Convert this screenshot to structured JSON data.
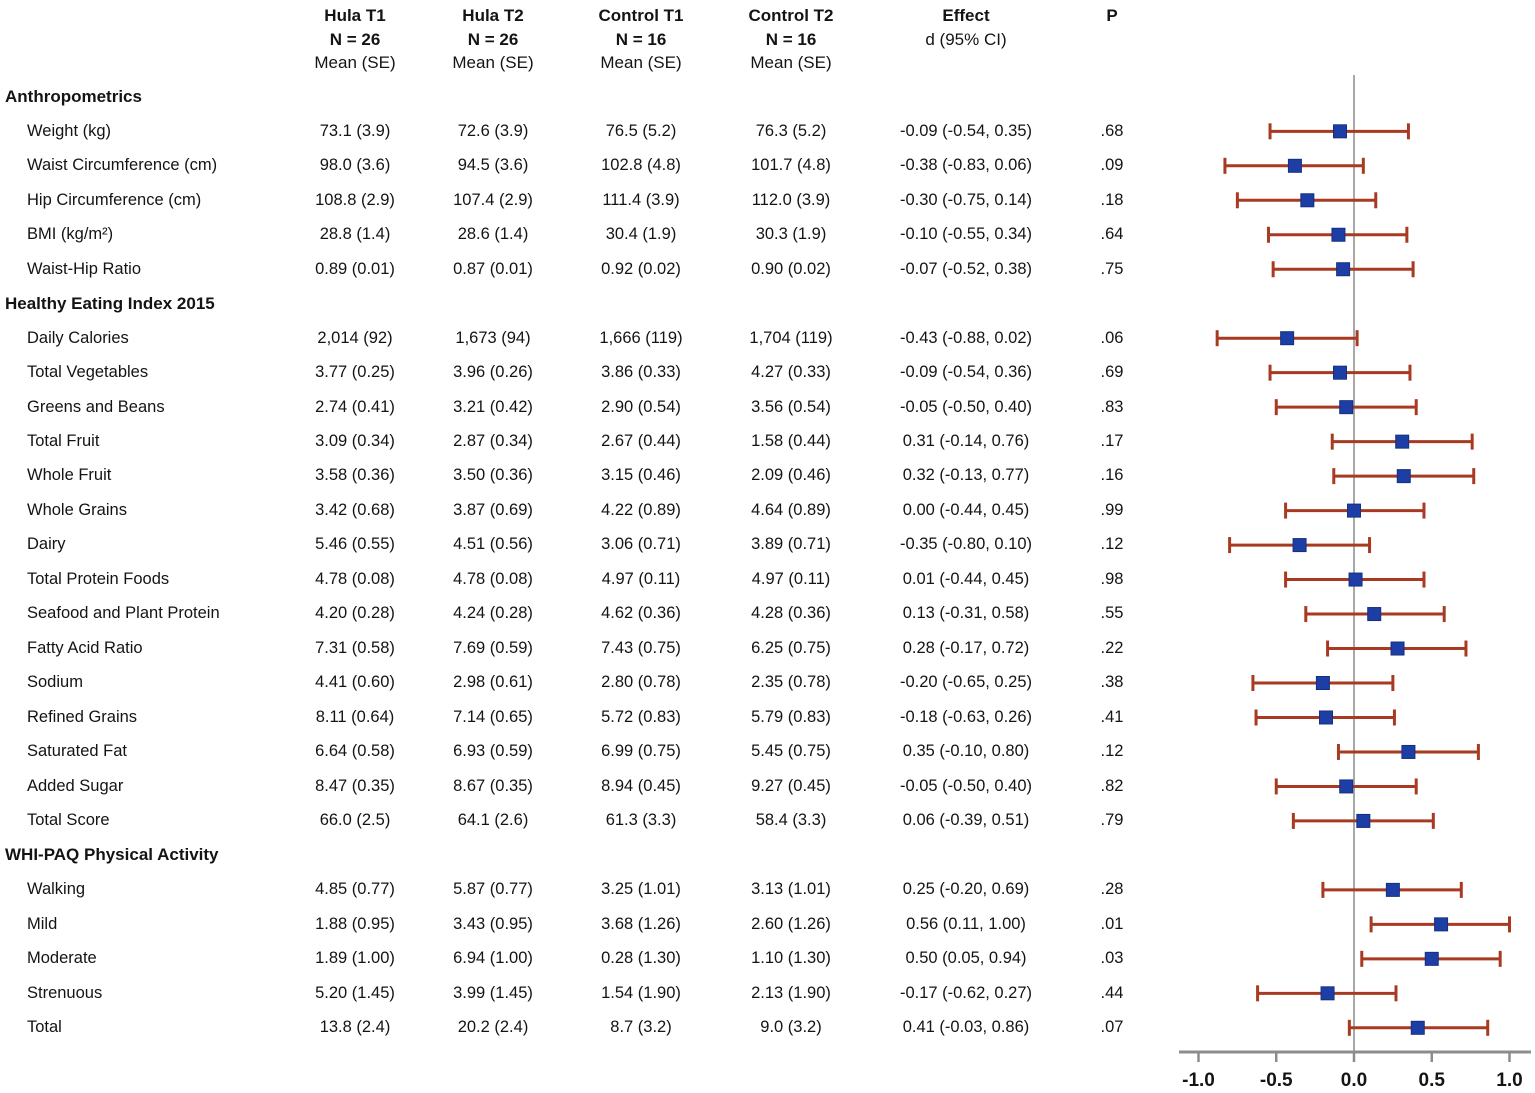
{
  "header": {
    "cols": [
      {
        "line1": "Hula T1",
        "line2": "N = 26",
        "line3": "Mean (SE)"
      },
      {
        "line1": "Hula T2",
        "line2": "N = 26",
        "line3": "Mean (SE)"
      },
      {
        "line1": "Control T1",
        "line2": "N = 16",
        "line3": "Mean (SE)"
      },
      {
        "line1": "Control T2",
        "line2": "N = 16",
        "line3": "Mean (SE)"
      },
      {
        "line1": "",
        "line2": "Effect",
        "line3": "d (95% CI)"
      },
      {
        "line1": "",
        "line2": "",
        "line3": "P"
      }
    ]
  },
  "rows": [
    {
      "type": "section",
      "label": "Anthropometrics"
    },
    {
      "type": "item",
      "label": "Weight (kg)",
      "cells": [
        "73.1 (3.9)",
        "72.6 (3.9)",
        "76.5 (5.2)",
        "76.3 (5.2)",
        "-0.09 (-0.54, 0.35)",
        ".68"
      ]
    },
    {
      "type": "item",
      "label": "Waist Circumference (cm)",
      "cells": [
        "98.0 (3.6)",
        "94.5 (3.6)",
        "102.8 (4.8)",
        "101.7 (4.8)",
        "-0.38 (-0.83, 0.06)",
        ".09"
      ]
    },
    {
      "type": "item",
      "label": "Hip Circumference (cm)",
      "cells": [
        "108.8 (2.9)",
        "107.4 (2.9)",
        "111.4 (3.9)",
        "112.0 (3.9)",
        "-0.30 (-0.75, 0.14)",
        ".18"
      ]
    },
    {
      "type": "item",
      "label": "BMI (kg/m²)",
      "cells": [
        "28.8 (1.4)",
        "28.6 (1.4)",
        "30.4 (1.9)",
        "30.3 (1.9)",
        "-0.10 (-0.55, 0.34)",
        ".64"
      ]
    },
    {
      "type": "item",
      "label": "Waist-Hip Ratio",
      "cells": [
        "0.89 (0.01)",
        "0.87 (0.01)",
        "0.92 (0.02)",
        "0.90 (0.02)",
        "-0.07 (-0.52, 0.38)",
        ".75"
      ]
    },
    {
      "type": "section",
      "label": "Healthy Eating Index 2015"
    },
    {
      "type": "item",
      "label": "Daily Calories",
      "cells": [
        "2,014 (92)",
        "1,673 (94)",
        "1,666 (119)",
        "1,704 (119)",
        "-0.43 (-0.88, 0.02)",
        ".06"
      ]
    },
    {
      "type": "item",
      "label": "Total Vegetables",
      "cells": [
        "3.77 (0.25)",
        "3.96 (0.26)",
        "3.86 (0.33)",
        "4.27 (0.33)",
        "-0.09 (-0.54, 0.36)",
        ".69"
      ]
    },
    {
      "type": "item",
      "label": "Greens and Beans",
      "cells": [
        "2.74 (0.41)",
        "3.21 (0.42)",
        "2.90 (0.54)",
        "3.56 (0.54)",
        "-0.05 (-0.50, 0.40)",
        ".83"
      ]
    },
    {
      "type": "item",
      "label": "Total Fruit",
      "cells": [
        "3.09 (0.34)",
        "2.87 (0.34)",
        "2.67 (0.44)",
        "1.58 (0.44)",
        "0.31 (-0.14, 0.76)",
        ".17"
      ]
    },
    {
      "type": "item",
      "label": "Whole Fruit",
      "cells": [
        "3.58 (0.36)",
        "3.50 (0.36)",
        "3.15 (0.46)",
        "2.09 (0.46)",
        "0.32 (-0.13, 0.77)",
        ".16"
      ]
    },
    {
      "type": "item",
      "label": "Whole Grains",
      "cells": [
        "3.42 (0.68)",
        "3.87 (0.69)",
        "4.22 (0.89)",
        "4.64 (0.89)",
        "0.00 (-0.44, 0.45)",
        ".99"
      ]
    },
    {
      "type": "item",
      "label": "Dairy",
      "cells": [
        "5.46 (0.55)",
        "4.51 (0.56)",
        "3.06 (0.71)",
        "3.89 (0.71)",
        "-0.35 (-0.80, 0.10)",
        ".12"
      ]
    },
    {
      "type": "item",
      "label": "Total Protein Foods",
      "cells": [
        "4.78 (0.08)",
        "4.78 (0.08)",
        "4.97 (0.11)",
        "4.97 (0.11)",
        "0.01 (-0.44, 0.45)",
        ".98"
      ]
    },
    {
      "type": "item",
      "label": "Seafood and Plant Protein",
      "cells": [
        "4.20 (0.28)",
        "4.24 (0.28)",
        "4.62 (0.36)",
        "4.28 (0.36)",
        "0.13 (-0.31, 0.58)",
        ".55"
      ]
    },
    {
      "type": "item",
      "label": "Fatty Acid Ratio",
      "cells": [
        "7.31 (0.58)",
        "7.69 (0.59)",
        "7.43 (0.75)",
        "6.25 (0.75)",
        "0.28 (-0.17, 0.72)",
        ".22"
      ]
    },
    {
      "type": "item",
      "label": "Sodium",
      "cells": [
        "4.41 (0.60)",
        "2.98 (0.61)",
        "2.80 (0.78)",
        "2.35 (0.78)",
        "-0.20 (-0.65, 0.25)",
        ".38"
      ]
    },
    {
      "type": "item",
      "label": "Refined Grains",
      "cells": [
        "8.11 (0.64)",
        "7.14 (0.65)",
        "5.72 (0.83)",
        "5.79 (0.83)",
        "-0.18 (-0.63, 0.26)",
        ".41"
      ]
    },
    {
      "type": "item",
      "label": "Saturated Fat",
      "cells": [
        "6.64 (0.58)",
        "6.93 (0.59)",
        "6.99 (0.75)",
        "5.45 (0.75)",
        "0.35 (-0.10, 0.80)",
        ".12"
      ]
    },
    {
      "type": "item",
      "label": "Added Sugar",
      "cells": [
        "8.47 (0.35)",
        "8.67 (0.35)",
        "8.94 (0.45)",
        "9.27 (0.45)",
        "-0.05 (-0.50, 0.40)",
        ".82"
      ]
    },
    {
      "type": "item",
      "label": "Total Score",
      "cells": [
        "66.0 (2.5)",
        "64.1 (2.6)",
        "61.3 (3.3)",
        "58.4 (3.3)",
        "0.06 (-0.39, 0.51)",
        ".79"
      ]
    },
    {
      "type": "section",
      "label": "WHI-PAQ Physical Activity"
    },
    {
      "type": "item",
      "label": "Walking",
      "cells": [
        "4.85 (0.77)",
        "5.87 (0.77)",
        "3.25 (1.01)",
        "3.13 (1.01)",
        "0.25 (-0.20, 0.69)",
        ".28"
      ]
    },
    {
      "type": "item",
      "label": "Mild",
      "cells": [
        "1.88 (0.95)",
        "3.43 (0.95)",
        "3.68 (1.26)",
        "2.60 (1.26)",
        "0.56 (0.11, 1.00)",
        ".01"
      ]
    },
    {
      "type": "item",
      "label": "Moderate",
      "cells": [
        "1.89 (1.00)",
        "6.94 (1.00)",
        "0.28 (1.30)",
        "1.10 (1.30)",
        "0.50 (0.05, 0.94)",
        ".03"
      ]
    },
    {
      "type": "item",
      "label": "Strenuous",
      "cells": [
        "5.20 (1.45)",
        "3.99 (1.45)",
        "1.54 (1.90)",
        "2.13 (1.90)",
        "-0.17 (-0.62, 0.27)",
        ".44"
      ]
    },
    {
      "type": "item",
      "label": "Total",
      "cells": [
        "13.8 (2.4)",
        "20.2 (2.4)",
        "8.7 (3.2)",
        "9.0 (3.2)",
        "0.41 (-0.03, 0.86)",
        ".07"
      ]
    }
  ],
  "chart_data": {
    "type": "scatter",
    "variant": "forest-plot",
    "title": "",
    "xlabel": "",
    "ylabel": "",
    "xlim": [
      -1.2,
      1.15
    ],
    "x_ticks": [
      -1.0,
      -0.5,
      0.0,
      0.5,
      1.0
    ],
    "x_tick_labels": [
      "-1.0",
      "-0.5",
      "0.0",
      "0.5",
      "1.0"
    ],
    "reference_line_x": 0.0,
    "marker": "square",
    "legend": "none",
    "grid": false,
    "points": [
      {
        "label": "Weight (kg)",
        "d": -0.09,
        "lo": -0.54,
        "hi": 0.35,
        "p": ".68"
      },
      {
        "label": "Waist Circumference (cm)",
        "d": -0.38,
        "lo": -0.83,
        "hi": 0.06,
        "p": ".09"
      },
      {
        "label": "Hip Circumference (cm)",
        "d": -0.3,
        "lo": -0.75,
        "hi": 0.14,
        "p": ".18"
      },
      {
        "label": "BMI (kg/m²)",
        "d": -0.1,
        "lo": -0.55,
        "hi": 0.34,
        "p": ".64"
      },
      {
        "label": "Waist-Hip Ratio",
        "d": -0.07,
        "lo": -0.52,
        "hi": 0.38,
        "p": ".75"
      },
      {
        "label": "Daily Calories",
        "d": -0.43,
        "lo": -0.88,
        "hi": 0.02,
        "p": ".06"
      },
      {
        "label": "Total Vegetables",
        "d": -0.09,
        "lo": -0.54,
        "hi": 0.36,
        "p": ".69"
      },
      {
        "label": "Greens and Beans",
        "d": -0.05,
        "lo": -0.5,
        "hi": 0.4,
        "p": ".83"
      },
      {
        "label": "Total Fruit",
        "d": 0.31,
        "lo": -0.14,
        "hi": 0.76,
        "p": ".17"
      },
      {
        "label": "Whole Fruit",
        "d": 0.32,
        "lo": -0.13,
        "hi": 0.77,
        "p": ".16"
      },
      {
        "label": "Whole Grains",
        "d": 0.0,
        "lo": -0.44,
        "hi": 0.45,
        "p": ".99"
      },
      {
        "label": "Dairy",
        "d": -0.35,
        "lo": -0.8,
        "hi": 0.1,
        "p": ".12"
      },
      {
        "label": "Total Protein Foods",
        "d": 0.01,
        "lo": -0.44,
        "hi": 0.45,
        "p": ".98"
      },
      {
        "label": "Seafood and Plant Protein",
        "d": 0.13,
        "lo": -0.31,
        "hi": 0.58,
        "p": ".55"
      },
      {
        "label": "Fatty Acid Ratio",
        "d": 0.28,
        "lo": -0.17,
        "hi": 0.72,
        "p": ".22"
      },
      {
        "label": "Sodium",
        "d": -0.2,
        "lo": -0.65,
        "hi": 0.25,
        "p": ".38"
      },
      {
        "label": "Refined Grains",
        "d": -0.18,
        "lo": -0.63,
        "hi": 0.26,
        "p": ".41"
      },
      {
        "label": "Saturated Fat",
        "d": 0.35,
        "lo": -0.1,
        "hi": 0.8,
        "p": ".12"
      },
      {
        "label": "Added Sugar",
        "d": -0.05,
        "lo": -0.5,
        "hi": 0.4,
        "p": ".82"
      },
      {
        "label": "Total Score",
        "d": 0.06,
        "lo": -0.39,
        "hi": 0.51,
        "p": ".79"
      },
      {
        "label": "Walking",
        "d": 0.25,
        "lo": -0.2,
        "hi": 0.69,
        "p": ".28"
      },
      {
        "label": "Mild",
        "d": 0.56,
        "lo": 0.11,
        "hi": 1.0,
        "p": ".01"
      },
      {
        "label": "Moderate",
        "d": 0.5,
        "lo": 0.05,
        "hi": 0.94,
        "p": ".03"
      },
      {
        "label": "Strenuous",
        "d": -0.17,
        "lo": -0.62,
        "hi": 0.27,
        "p": ".44"
      },
      {
        "label": "Total",
        "d": 0.41,
        "lo": -0.03,
        "hi": 0.86,
        "p": ".07"
      }
    ]
  },
  "colors": {
    "ci_bar": "#A83A22",
    "marker_fill": "#1D3EA4",
    "marker_border": "#16307E",
    "zero_line": "#A8A8A8",
    "axis": "#8C8C8C",
    "text": "#141414"
  }
}
